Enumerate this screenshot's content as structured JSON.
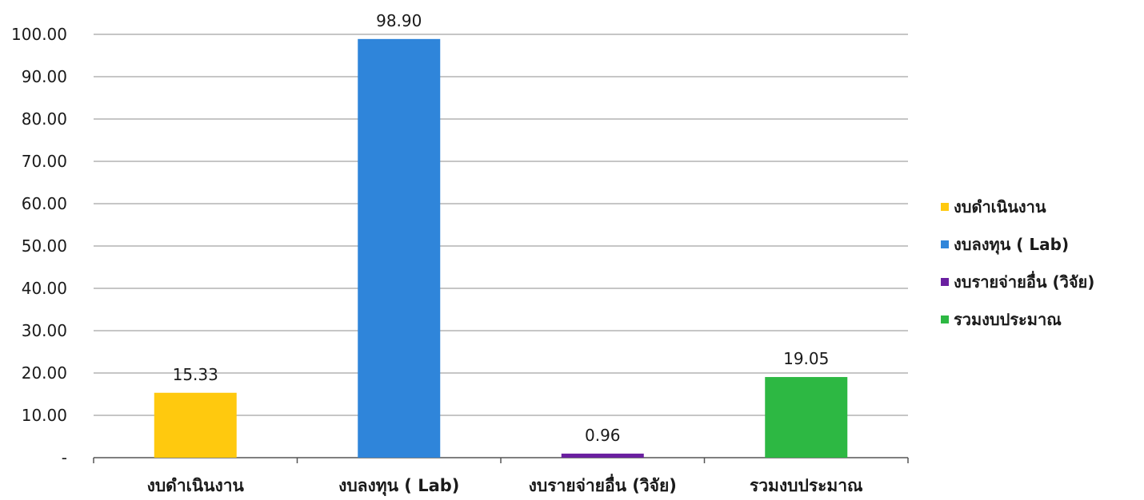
{
  "chart_data": {
    "type": "bar",
    "categories": [
      "งบดำเนินงาน",
      "งบลงทุน ( Lab)",
      "งบรายจ่ายอื่น (วิจัย)",
      "รวมงบประมาณ"
    ],
    "values": [
      15.33,
      98.9,
      0.96,
      19.05
    ],
    "value_labels": [
      "15.33",
      "98.90",
      "0.96",
      "19.05"
    ],
    "colors": [
      "#FFC90E",
      "#2F85DA",
      "#6A1FA0",
      "#2DB843"
    ],
    "ylim": [
      0,
      100
    ],
    "yticks": [
      0,
      10,
      20,
      30,
      40,
      50,
      60,
      70,
      80,
      90,
      100
    ],
    "ytick_labels": [
      "-",
      "10.00",
      "20.00",
      "30.00",
      "40.00",
      "50.00",
      "60.00",
      "70.00",
      "80.00",
      "90.00",
      "100.00"
    ],
    "grid": true,
    "legend_position": "right",
    "legend": [
      {
        "label": "งบดำเนินงาน",
        "color": "#FFC90E"
      },
      {
        "label": "งบลงทุน ( Lab)",
        "color": "#2F85DA"
      },
      {
        "label": "งบรายจ่ายอื่น (วิจัย)",
        "color": "#6A1FA0"
      },
      {
        "label": "รวมงบประมาณ",
        "color": "#2DB843"
      }
    ]
  }
}
